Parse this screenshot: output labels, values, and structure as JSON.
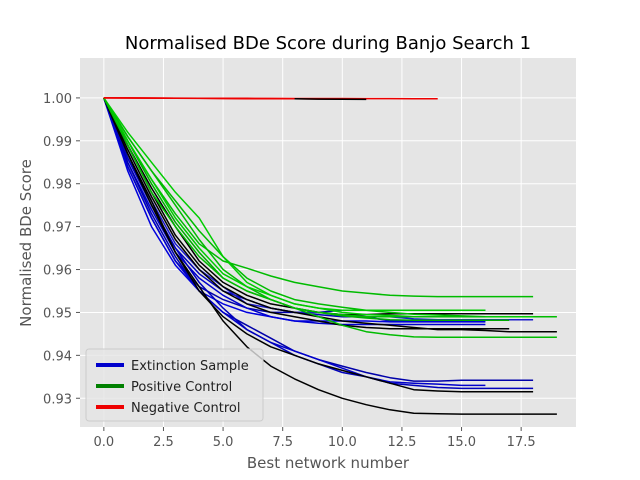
{
  "chart_data": {
    "type": "line",
    "title": "Normalised BDe Score during Banjo Search 1",
    "xlabel": "Best network number",
    "ylabel": "Normalised BDe Score",
    "xlim": [
      -1,
      19.8
    ],
    "ylim": [
      0.9233,
      1.0093
    ],
    "xticks": [
      0.0,
      2.5,
      5.0,
      7.5,
      10.0,
      12.5,
      15.0,
      17.5
    ],
    "xtick_labels": [
      "0.0",
      "2.5",
      "5.0",
      "7.5",
      "10.0",
      "12.5",
      "15.0",
      "17.5"
    ],
    "yticks": [
      0.93,
      0.94,
      0.95,
      0.96,
      0.97,
      0.98,
      0.99,
      1.0
    ],
    "ytick_labels": [
      "0.93",
      "0.94",
      "0.95",
      "0.96",
      "0.97",
      "0.98",
      "0.99",
      "1.00"
    ],
    "grid": true,
    "legend": {
      "position": "lower-left",
      "entries": [
        {
          "label": "Extinction Sample",
          "color": "#0000cc"
        },
        {
          "label": "Positive Control",
          "color": "#008000"
        },
        {
          "label": "Negative Control",
          "color": "#ee0000"
        }
      ]
    },
    "series": [
      {
        "color": "#0000aa",
        "x": [
          0,
          1,
          2,
          3,
          4,
          5,
          6,
          7,
          8,
          9,
          10,
          11,
          12,
          13,
          14,
          15,
          16
        ],
        "y": [
          1.0,
          0.984,
          0.972,
          0.962,
          0.956,
          0.953,
          0.951,
          0.95,
          0.95,
          0.95,
          0.9505,
          0.9505,
          0.9505,
          0.9505,
          0.9505,
          0.9505,
          0.9505
        ]
      },
      {
        "color": "#0000bb",
        "x": [
          0,
          1,
          2,
          3,
          4,
          5,
          6,
          7,
          8,
          9,
          10,
          11,
          12,
          13,
          14,
          15,
          16
        ],
        "y": [
          1.0,
          0.986,
          0.975,
          0.965,
          0.959,
          0.955,
          0.953,
          0.951,
          0.95,
          0.9495,
          0.949,
          0.949,
          0.948,
          0.948,
          0.948,
          0.948,
          0.948
        ]
      },
      {
        "color": "#0000cc",
        "x": [
          0,
          1,
          2,
          3,
          4,
          5,
          6,
          7,
          8,
          9,
          10,
          11,
          12,
          13,
          14,
          15,
          16
        ],
        "y": [
          1.0,
          0.985,
          0.974,
          0.964,
          0.958,
          0.954,
          0.951,
          0.949,
          0.948,
          0.9475,
          0.9472,
          0.9472,
          0.9472,
          0.9472,
          0.9472,
          0.9472,
          0.9472
        ]
      },
      {
        "color": "#0000dd",
        "x": [
          0,
          1,
          2,
          3,
          4,
          5,
          6,
          7,
          8,
          9,
          10,
          11,
          12,
          13,
          14,
          15,
          16
        ],
        "y": [
          1.0,
          0.983,
          0.97,
          0.961,
          0.955,
          0.952,
          0.95,
          0.949,
          0.948,
          0.948,
          0.948,
          0.948,
          0.9478,
          0.9478,
          0.9478,
          0.9478,
          0.9478
        ]
      },
      {
        "color": "#1a1acc",
        "x": [
          0,
          1,
          2,
          3,
          4,
          5,
          6,
          7,
          8,
          9,
          10,
          11,
          12,
          13,
          14,
          15,
          16,
          17,
          18
        ],
        "y": [
          1.0,
          0.987,
          0.976,
          0.966,
          0.96,
          0.956,
          0.952,
          0.951,
          0.95,
          0.95,
          0.9495,
          0.949,
          0.949,
          0.9485,
          0.9483,
          0.9483,
          0.9483,
          0.9483,
          0.9483
        ]
      },
      {
        "color": "#0000aa",
        "x": [
          0,
          1,
          2,
          3,
          4,
          5,
          6,
          7,
          8,
          9,
          10,
          11,
          12,
          13,
          14,
          15,
          16,
          17,
          18
        ],
        "y": [
          1.0,
          0.985,
          0.973,
          0.963,
          0.955,
          0.95,
          0.947,
          0.944,
          0.941,
          0.939,
          0.9375,
          0.936,
          0.9348,
          0.934,
          0.934,
          0.9342,
          0.9342,
          0.9342,
          0.9342
        ]
      },
      {
        "color": "#0000cc",
        "x": [
          0,
          1,
          2,
          3,
          4,
          5,
          6,
          7,
          8,
          9,
          10,
          11,
          12,
          13,
          14,
          15,
          16
        ],
        "y": [
          1.0,
          0.984,
          0.972,
          0.962,
          0.955,
          0.95,
          0.946,
          0.943,
          0.941,
          0.939,
          0.937,
          0.935,
          0.9338,
          0.9335,
          0.9333,
          0.933,
          0.933
        ]
      },
      {
        "color": "#0000bb",
        "x": [
          0,
          1,
          2,
          3,
          4,
          5,
          6,
          7,
          8,
          9,
          10,
          11,
          12,
          13,
          14,
          15,
          16,
          17,
          18
        ],
        "y": [
          1.0,
          0.986,
          0.975,
          0.965,
          0.957,
          0.951,
          0.946,
          0.943,
          0.94,
          0.938,
          0.936,
          0.935,
          0.9335,
          0.933,
          0.9325,
          0.9323,
          0.9323,
          0.9323,
          0.9323
        ]
      },
      {
        "color": "#000000",
        "x": [
          0,
          1,
          2,
          3,
          4,
          5,
          6,
          7,
          8,
          9,
          10,
          11,
          12,
          13,
          14,
          15,
          16,
          17,
          18,
          19
        ],
        "y": [
          1.0,
          0.987,
          0.976,
          0.964,
          0.956,
          0.948,
          0.942,
          0.9375,
          0.9345,
          0.932,
          0.93,
          0.9285,
          0.9273,
          0.9265,
          0.9264,
          0.9263,
          0.9263,
          0.9263,
          0.9263,
          0.9263
        ]
      },
      {
        "color": "#000000",
        "x": [
          0,
          1,
          2,
          3,
          4,
          5,
          6,
          7,
          8,
          9,
          10,
          11,
          12,
          13,
          14,
          15,
          16,
          17,
          18
        ],
        "y": [
          1.0,
          0.987,
          0.975,
          0.964,
          0.955,
          0.949,
          0.945,
          0.942,
          0.94,
          0.938,
          0.9365,
          0.935,
          0.9335,
          0.932,
          0.9317,
          0.9315,
          0.9315,
          0.9315,
          0.9315
        ]
      },
      {
        "color": "#000000",
        "x": [
          0,
          1,
          2,
          3,
          4,
          5,
          6,
          7,
          8,
          9,
          10,
          11,
          12,
          13,
          14,
          15,
          16,
          17,
          18,
          19
        ],
        "y": [
          1.0,
          0.989,
          0.978,
          0.968,
          0.961,
          0.956,
          0.953,
          0.951,
          0.95,
          0.949,
          0.948,
          0.9475,
          0.947,
          0.9465,
          0.946,
          0.946,
          0.9458,
          0.9455,
          0.9455,
          0.9455
        ]
      },
      {
        "color": "#000000",
        "x": [
          0,
          1,
          2,
          3,
          4,
          5,
          6,
          7,
          8,
          9,
          10,
          11,
          12,
          13,
          14,
          15,
          16,
          17,
          18
        ],
        "y": [
          1.0,
          0.989,
          0.979,
          0.97,
          0.962,
          0.957,
          0.954,
          0.952,
          0.951,
          0.95,
          0.9495,
          0.9495,
          0.9497,
          0.9497,
          0.9497,
          0.9497,
          0.9497,
          0.9497,
          0.9497
        ]
      },
      {
        "color": "#000000",
        "x": [
          0,
          1,
          2,
          3,
          4,
          5,
          6,
          7,
          8,
          9,
          10,
          11,
          12,
          13,
          14,
          15,
          16,
          17
        ],
        "y": [
          1.0,
          0.988,
          0.977,
          0.967,
          0.96,
          0.955,
          0.952,
          0.95,
          0.949,
          0.948,
          0.947,
          0.9465,
          0.9462,
          0.9462,
          0.9462,
          0.9462,
          0.9462,
          0.9462
        ]
      },
      {
        "color": "#00bb00",
        "x": [
          0,
          1,
          2,
          3,
          4,
          5,
          6,
          7,
          8,
          9,
          10,
          11,
          12,
          13,
          14,
          15,
          16,
          17,
          18
        ],
        "y": [
          1.0,
          0.99,
          0.981,
          0.973,
          0.966,
          0.962,
          0.9603,
          0.9585,
          0.957,
          0.956,
          0.955,
          0.9545,
          0.954,
          0.9538,
          0.9537,
          0.9537,
          0.9537,
          0.9537,
          0.9537
        ]
      },
      {
        "color": "#00bb00",
        "x": [
          0,
          1,
          2,
          3,
          4,
          5,
          6,
          7,
          8,
          9,
          10,
          11,
          12,
          13,
          14,
          15,
          16,
          17,
          18,
          19
        ],
        "y": [
          1.0,
          0.991,
          0.983,
          0.975,
          0.967,
          0.96,
          0.956,
          0.953,
          0.951,
          0.949,
          0.947,
          0.9455,
          0.9448,
          0.9443,
          0.9442,
          0.9442,
          0.9442,
          0.9442,
          0.9442,
          0.9442
        ]
      },
      {
        "color": "#00bb00",
        "x": [
          0,
          1,
          2,
          3,
          4,
          5,
          6,
          7,
          8,
          9,
          10,
          11,
          12,
          13,
          14,
          15,
          16,
          17,
          18,
          19
        ],
        "y": [
          1.0,
          0.991,
          0.983,
          0.976,
          0.969,
          0.963,
          0.958,
          0.955,
          0.953,
          0.952,
          0.9512,
          0.9505,
          0.95,
          0.9496,
          0.9494,
          0.9492,
          0.949,
          0.949,
          0.949,
          0.949
        ]
      },
      {
        "color": "#00cc00",
        "x": [
          0,
          1,
          2,
          3,
          4,
          5,
          6,
          7,
          8,
          9,
          10,
          11,
          12,
          13,
          14,
          15,
          16,
          17,
          18
        ],
        "y": [
          1.0,
          0.992,
          0.985,
          0.978,
          0.972,
          0.963,
          0.957,
          0.954,
          0.952,
          0.951,
          0.95,
          0.9495,
          0.9493,
          0.949,
          0.949,
          0.949,
          0.949,
          0.949,
          0.949
        ]
      },
      {
        "color": "#00aa00",
        "x": [
          0,
          1,
          2,
          3,
          4,
          5,
          6,
          7,
          8,
          9,
          10,
          11,
          12,
          13,
          14,
          15,
          16,
          17
        ],
        "y": [
          1.0,
          0.99,
          0.98,
          0.971,
          0.964,
          0.958,
          0.955,
          0.953,
          0.951,
          0.95,
          0.9492,
          0.9487,
          0.9483,
          0.9482,
          0.9482,
          0.9482,
          0.9482,
          0.9482
        ]
      },
      {
        "color": "#00cc00",
        "x": [
          0,
          1,
          2,
          3,
          4,
          5,
          6,
          7,
          8,
          9,
          10,
          11,
          12,
          13,
          14,
          15,
          16
        ],
        "y": [
          1.0,
          0.99,
          0.981,
          0.972,
          0.965,
          0.959,
          0.956,
          0.954,
          0.952,
          0.951,
          0.9505,
          0.9505,
          0.9505,
          0.9505,
          0.9505,
          0.9505,
          0.9505
        ]
      },
      {
        "color": "#00bb00",
        "x": [
          0,
          1,
          2,
          3,
          4,
          5,
          6,
          7,
          8,
          9,
          10,
          11,
          12,
          13,
          14,
          15,
          16
        ],
        "y": [
          1.0,
          0.989,
          0.978,
          0.97,
          0.963,
          0.958,
          0.955,
          0.953,
          0.951,
          0.95,
          0.9495,
          0.949,
          0.949,
          0.949,
          0.949,
          0.949,
          0.949
        ]
      },
      {
        "color": "#ee0000",
        "x": [
          0,
          1,
          2,
          3,
          4,
          5,
          6,
          7,
          8,
          9,
          10,
          11
        ],
        "y": [
          1.0,
          0.99998,
          0.99995,
          0.9999,
          0.99988,
          0.99985,
          0.99982,
          0.9998,
          0.99978,
          0.99975,
          0.99972,
          0.99968
        ]
      },
      {
        "color": "#ee0000",
        "x": [
          0,
          1,
          2,
          3,
          4,
          5,
          6,
          7,
          8
        ],
        "y": [
          1.0,
          0.99998,
          0.99995,
          0.99992,
          0.9999,
          0.99987,
          0.99984,
          0.99982,
          0.9998
        ]
      },
      {
        "color": "#ee0000",
        "x": [
          0,
          1,
          2,
          3,
          4,
          5,
          6,
          7,
          8,
          9,
          10,
          11,
          12,
          13,
          14
        ],
        "y": [
          1.0,
          1.0,
          0.99998,
          0.99995,
          0.99993,
          0.99991,
          0.9999,
          0.99988,
          0.99987,
          0.99986,
          0.99985,
          0.99984,
          0.99983,
          0.99982,
          0.99982
        ]
      },
      {
        "color": "#000000",
        "x": [
          8,
          9,
          10,
          11
        ],
        "y": [
          0.99978,
          0.99972,
          0.99968,
          0.99965
        ]
      }
    ]
  }
}
